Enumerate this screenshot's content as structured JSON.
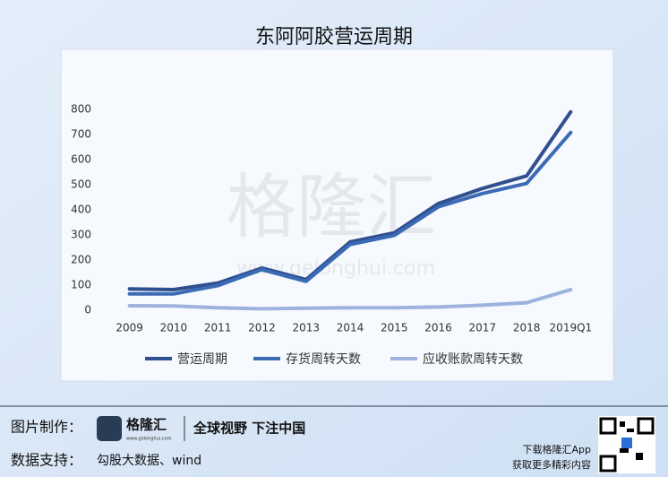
{
  "chart_data": {
    "type": "line",
    "title": "东阿阿胶营运周期",
    "categories": [
      "2009",
      "2010",
      "2011",
      "2012",
      "2013",
      "2014",
      "2015",
      "2016",
      "2017",
      "2018",
      "2019Q1"
    ],
    "series": [
      {
        "name": "营运周期",
        "color": "#2f4f8f",
        "values": [
          85,
          82,
          108,
          168,
          122,
          272,
          308,
          425,
          485,
          535,
          790
        ]
      },
      {
        "name": "存货周转天数",
        "color": "#3b6bb5",
        "values": [
          65,
          65,
          98,
          162,
          115,
          262,
          298,
          412,
          465,
          505,
          708
        ]
      },
      {
        "name": "应收账款周转天数",
        "color": "#9db3de",
        "values": [
          18,
          17,
          10,
          6,
          8,
          10,
          10,
          13,
          20,
          30,
          82
        ]
      }
    ],
    "ylim": [
      0,
      800
    ],
    "yticks": [
      0,
      100,
      200,
      300,
      400,
      500,
      600,
      700,
      800
    ],
    "grid": false,
    "legend": "bottom"
  },
  "watermark": {
    "brand": "格隆汇",
    "url": "www.gelonghui.com"
  },
  "footer": {
    "made_by_label": "图片制作：",
    "logo_name": "格隆汇",
    "logo_url": "www.gelonghui.com",
    "slogan": "全球视野 下注中国",
    "data_label": "数据支持：",
    "data_source": "勾股大数据、wind",
    "app_line1": "下载格隆汇App",
    "app_line2": "获取更多精彩内容"
  }
}
